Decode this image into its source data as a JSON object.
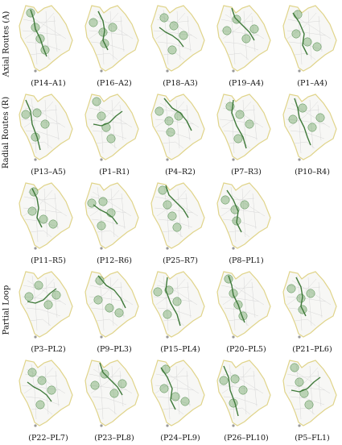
{
  "colors": {
    "boundary": "#e0d48a",
    "streets": "#d8d8d8",
    "area_fill": "#f7f7f5",
    "route": "#3f7a3a",
    "stop": "#6fa566",
    "stop_edge": "#4f8a4a"
  },
  "rows": [
    {
      "label": "Axial Routes (A)",
      "maps": [
        {
          "caption": "(P14–A1)"
        },
        {
          "caption": "(P16–A2)"
        },
        {
          "caption": "(P18–A3)"
        },
        {
          "caption": "(P19–A4)"
        },
        {
          "caption": "(P1–A4)"
        }
      ]
    },
    {
      "label": "Radial Routes (R)",
      "maps": [
        {
          "caption": "(P13–A5)"
        },
        {
          "caption": "(P1–R1)"
        },
        {
          "caption": "(P4–R2)"
        },
        {
          "caption": "(P7–R3)"
        },
        {
          "caption": "(P10–R4)"
        }
      ]
    },
    {
      "label": "",
      "maps": [
        {
          "caption": "(P11–R5)"
        },
        {
          "caption": "(P12–R6)"
        },
        {
          "caption": "(P25–R7)"
        },
        {
          "caption": "(P8–PL1)"
        }
      ]
    },
    {
      "label": "Partial Loop",
      "maps": [
        {
          "caption": "(P3–PL2)"
        },
        {
          "caption": "(P9–PL3)"
        },
        {
          "caption": "(P15–PL4)"
        },
        {
          "caption": "(P20–PL5)"
        },
        {
          "caption": "(P21–PL6)"
        }
      ]
    },
    {
      "label": "",
      "maps": [
        {
          "caption": "(P22–PL7)"
        },
        {
          "caption": "(P23–PL8)"
        },
        {
          "caption": "(P24–PL9)"
        },
        {
          "caption": "(P26–PL10)"
        },
        {
          "caption": "(P5–FL1)"
        }
      ]
    }
  ]
}
